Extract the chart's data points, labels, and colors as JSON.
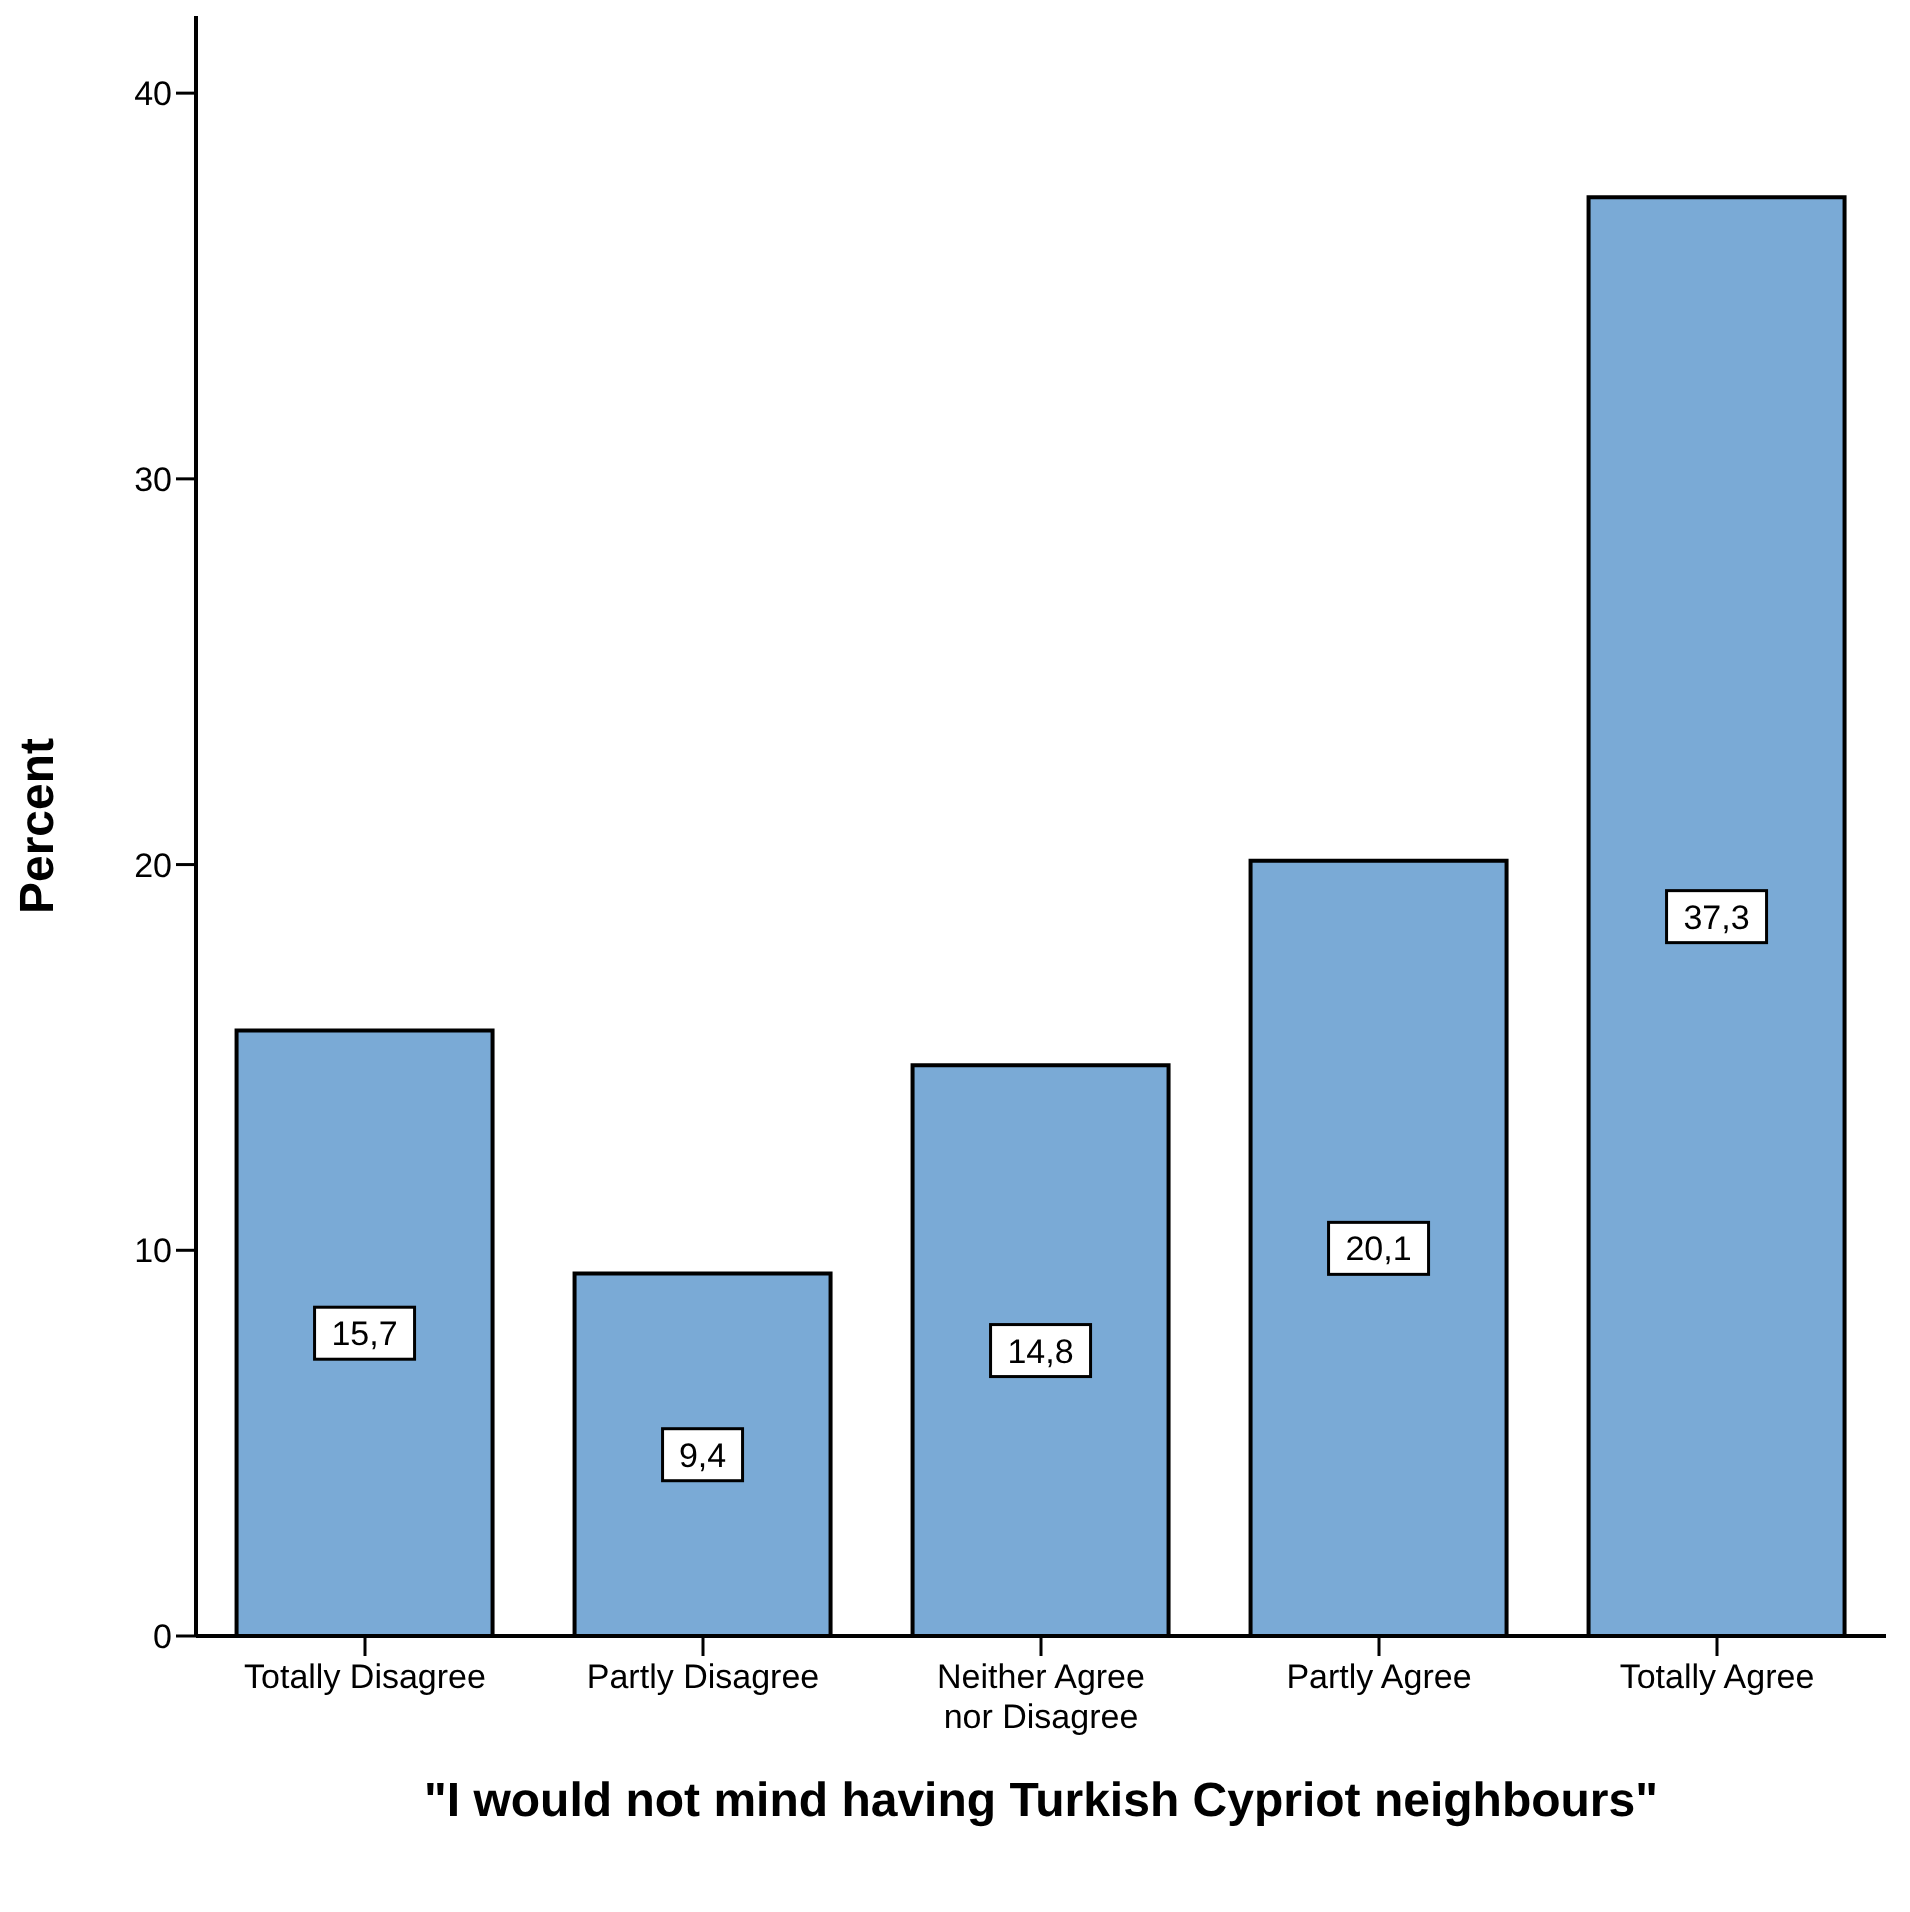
{
  "chart_data": {
    "type": "bar",
    "xlabel": "\"I would not mind having Turkish Cypriot neighbours\"",
    "ylabel": "Percent",
    "categories": [
      "Totally Disagree",
      "Partly Disagree",
      "Neither Agree nor Disagree",
      "Partly Agree",
      "Totally Agree"
    ],
    "values": [
      15.7,
      9.4,
      14.8,
      20.1,
      37.3
    ],
    "value_labels": [
      "15,7",
      "9,4",
      "14,8",
      "20,1",
      "37,3"
    ],
    "color": "#7aaad6",
    "ylim": [
      0,
      42
    ],
    "yticks": [
      0,
      10,
      20,
      30,
      40
    ],
    "grid": false,
    "legend": false
  }
}
